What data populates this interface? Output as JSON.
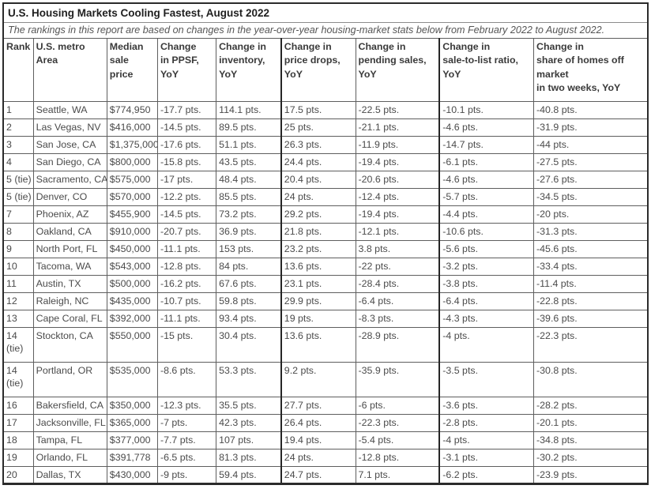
{
  "chart_data": {
    "type": "table",
    "title": "U.S. Housing Markets Cooling Fastest, August 2022",
    "subtitle": "The rankings in this report are based on changes in the year-over-year housing-market stats below from February 2022 to August 2022.",
    "columns": [
      {
        "key": "rank",
        "label": "Rank"
      },
      {
        "key": "metro_area",
        "label": "U.S. metro\nArea"
      },
      {
        "key": "median_sale_price",
        "label": "Median\nsale price"
      },
      {
        "key": "change_ppsf_yoy",
        "label": "Change\nin PPSF,\nYoY"
      },
      {
        "key": "change_inventory_yoy",
        "label": "Change in\ninventory,\nYoY"
      },
      {
        "key": "change_price_drops_yoy",
        "label": "Change in\nprice drops,\nYoY"
      },
      {
        "key": "change_pending_sales_yoy",
        "label": "Change in\npending sales,\nYoY"
      },
      {
        "key": "change_sale_to_list_yoy",
        "label": "Change in\nsale-to-list ratio,\nYoY"
      },
      {
        "key": "change_share_off_market_yoy",
        "label": "Change in\nshare of homes off\nmarket\nin two weeks, YoY"
      }
    ],
    "rows": [
      [
        "1",
        "Seattle, WA",
        "$774,950",
        "-17.7 pts.",
        "114.1 pts.",
        "17.5 pts.",
        "-22.5 pts.",
        "-10.1 pts.",
        "-40.8 pts."
      ],
      [
        "2",
        "Las Vegas, NV",
        "$416,000",
        "-14.5 pts.",
        "89.5 pts.",
        "25 pts.",
        "-21.1 pts.",
        "-4.6 pts.",
        "-31.9 pts."
      ],
      [
        "3",
        "San Jose, CA",
        "$1,375,000",
        "-17.6 pts.",
        "51.1 pts.",
        "26.3 pts.",
        "-11.9 pts.",
        "-14.7 pts.",
        "-44 pts."
      ],
      [
        "4",
        "San Diego, CA",
        "$800,000",
        "-15.8 pts.",
        "43.5 pts.",
        "24.4 pts.",
        "-19.4 pts.",
        "-6.1 pts.",
        "-27.5 pts."
      ],
      [
        "5 (tie)",
        "Sacramento, CA",
        "$575,000",
        "-17 pts.",
        "48.4 pts.",
        "20.4 pts.",
        "-20.6 pts.",
        "-4.6 pts.",
        "-27.6 pts."
      ],
      [
        "5 (tie)",
        "Denver, CO",
        "$570,000",
        "-12.2 pts.",
        "85.5 pts.",
        "24 pts.",
        "-12.4 pts.",
        "-5.7 pts.",
        "-34.5 pts."
      ],
      [
        "7",
        "Phoenix, AZ",
        "$455,900",
        "-14.5 pts.",
        "73.2 pts.",
        "29.2 pts.",
        "-19.4 pts.",
        "-4.4 pts.",
        "-20 pts."
      ],
      [
        "8",
        "Oakland, CA",
        "$910,000",
        "-20.7 pts.",
        "36.9 pts.",
        "21.8 pts.",
        "-12.1 pts.",
        "-10.6 pts.",
        "-31.3 pts."
      ],
      [
        "9",
        "North Port, FL",
        "$450,000",
        "-11.1 pts.",
        "153 pts.",
        "23.2 pts.",
        "3.8 pts.",
        "-5.6 pts.",
        "-45.6 pts."
      ],
      [
        "10",
        "Tacoma, WA",
        "$543,000",
        "-12.8 pts.",
        "84 pts.",
        "13.6 pts.",
        "-22 pts.",
        "-3.2 pts.",
        "-33.4 pts."
      ],
      [
        "11",
        "Austin, TX",
        "$500,000",
        "-16.2 pts.",
        "67.6 pts.",
        "23.1 pts.",
        "-28.4 pts.",
        "-3.8 pts.",
        "-11.4 pts."
      ],
      [
        "12",
        "Raleigh, NC",
        "$435,000",
        "-10.7 pts.",
        "59.8 pts.",
        "29.9 pts.",
        "-6.4 pts.",
        "-6.4 pts.",
        "-22.8 pts."
      ],
      [
        "13",
        "Cape Coral, FL",
        "$392,000",
        "-11.1 pts.",
        "93.4 pts.",
        "19 pts.",
        "-8.3 pts.",
        "-4.3 pts.",
        "-39.6 pts."
      ],
      [
        "14 (tie)",
        "Stockton, CA",
        "$550,000",
        "-15 pts.",
        "30.4 pts.",
        "13.6 pts.",
        "-28.9 pts.",
        "-4 pts.",
        "-22.3 pts."
      ],
      [
        "14 (tie)",
        "Portland, OR",
        "$535,000",
        "-8.6 pts.",
        "53.3 pts.",
        "9.2 pts.",
        "-35.9 pts.",
        "-3.5 pts.",
        "-30.8 pts."
      ],
      [
        "16",
        "Bakersfield, CA",
        "$350,000",
        "-12.3 pts.",
        "35.5 pts.",
        "27.7 pts.",
        "-6 pts.",
        "-3.6 pts.",
        "-28.2 pts."
      ],
      [
        "17",
        "Jacksonville, FL",
        "$365,000",
        "-7 pts.",
        "42.3 pts.",
        "26.4 pts.",
        "-22.3 pts.",
        "-2.8 pts.",
        "-20.1 pts."
      ],
      [
        "18",
        "Tampa, FL",
        "$377,000",
        "-7.7 pts.",
        "107 pts.",
        "19.4 pts.",
        "-5.4 pts.",
        "-4 pts.",
        "-34.8 pts."
      ],
      [
        "19",
        "Orlando, FL",
        "$391,778",
        "-6.5 pts.",
        "81.3 pts.",
        "24 pts.",
        "-12.8 pts.",
        "-3.1 pts.",
        "-30.2 pts."
      ],
      [
        "20",
        "Dallas, TX",
        "$430,000",
        "-9 pts.",
        "59.4 pts.",
        "24.7 pts.",
        "7.1 pts.",
        "-6.2 pts.",
        "-23.9 pts."
      ]
    ],
    "colors": {
      "border_outer": "#2b2b2b",
      "border_inner": "#5e5e5e",
      "title_text": "#1f1f1f",
      "body_text": "#4b4b4b"
    }
  }
}
